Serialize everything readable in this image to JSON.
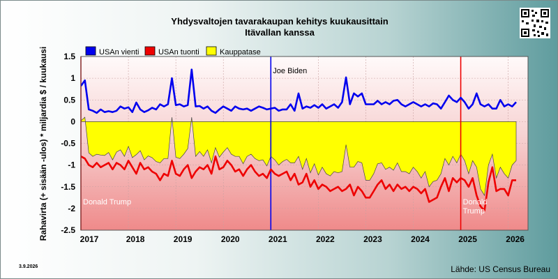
{
  "header": {
    "title_line1": "Yhdysvaltojen tavarakaupan kehitys kuukausittain",
    "title_line2": "Itävallan kanssa"
  },
  "footer": {
    "date": "3.9.2026",
    "source": "Lähde: US Census Bureau"
  },
  "chart_data": {
    "type": "line",
    "title": "Yhdysvaltojen tavarakaupan kehitys kuukausittain Itävallan kanssa",
    "ylabel": "Rahavirta (+ sisään -ulos)  * miljardia $ / kuukausi",
    "xlabel": "",
    "ylim": [
      -2.5,
      1.5
    ],
    "yticks": [
      1.5,
      1,
      0.5,
      0,
      -0.5,
      -1,
      -1.5,
      -2,
      -2.5
    ],
    "xlim": [
      "2017-01",
      "2026-06"
    ],
    "xtick_labels": [
      "2017",
      "2018",
      "2019",
      "2020",
      "2021",
      "2022",
      "2023",
      "2024",
      "2025",
      "2026"
    ],
    "grid": true,
    "legend_position": "top-left",
    "x_start": "2017-01",
    "series": [
      {
        "name": "USAn vienti",
        "color": "#0000ee",
        "values": [
          0.82,
          0.95,
          0.28,
          0.25,
          0.2,
          0.28,
          0.22,
          0.24,
          0.22,
          0.25,
          0.35,
          0.3,
          0.33,
          0.22,
          0.44,
          0.28,
          0.22,
          0.26,
          0.32,
          0.28,
          0.4,
          0.35,
          0.4,
          1.0,
          0.38,
          0.4,
          0.35,
          0.38,
          1.2,
          0.35,
          0.36,
          0.3,
          0.35,
          0.25,
          0.2,
          0.28,
          0.35,
          0.3,
          0.25,
          0.35,
          0.3,
          0.28,
          0.3,
          0.25,
          0.3,
          0.35,
          0.32,
          0.28,
          0.3,
          0.32,
          0.25,
          0.28,
          0.28,
          0.4,
          0.25,
          0.65,
          0.3,
          0.35,
          0.32,
          0.38,
          0.32,
          0.4,
          0.3,
          0.35,
          0.4,
          0.32,
          0.45,
          1.02,
          0.4,
          0.65,
          0.58,
          0.65,
          0.4,
          0.4,
          0.4,
          0.48,
          0.4,
          0.45,
          0.4,
          0.48,
          0.5,
          0.4,
          0.35,
          0.4,
          0.45,
          0.4,
          0.35,
          0.4,
          0.35,
          0.42,
          0.4,
          0.3,
          0.45,
          0.6,
          0.5,
          0.45,
          0.55,
          0.45,
          0.3,
          0.4,
          0.65,
          0.4,
          0.35,
          0.4,
          0.3,
          0.3,
          0.5,
          0.35,
          0.4,
          0.35,
          0.45
        ]
      },
      {
        "name": "USAn tuonti",
        "color": "#ee0000",
        "values": [
          -0.8,
          -0.85,
          -1.0,
          -1.05,
          -0.95,
          -1.05,
          -1.0,
          -0.95,
          -1.1,
          -0.95,
          -1.0,
          -1.1,
          -0.9,
          -1.05,
          -1.2,
          -0.95,
          -1.1,
          -1.05,
          -1.15,
          -1.2,
          -1.35,
          -1.2,
          -1.25,
          -0.9,
          -1.2,
          -1.25,
          -1.1,
          -1.0,
          -1.3,
          -1.15,
          -1.05,
          -1.1,
          -1.0,
          -1.2,
          -0.8,
          -1.1,
          -1.05,
          -0.9,
          -1.0,
          -1.15,
          -1.1,
          -1.25,
          -1.1,
          -1.0,
          -1.15,
          -1.25,
          -1.2,
          -1.3,
          -1.1,
          -1.2,
          -1.25,
          -1.2,
          -1.15,
          -1.35,
          -1.2,
          -1.45,
          -1.4,
          -1.2,
          -1.5,
          -1.35,
          -1.55,
          -1.45,
          -1.5,
          -1.6,
          -1.55,
          -1.5,
          -1.6,
          -1.55,
          -1.45,
          -1.7,
          -1.5,
          -1.6,
          -1.75,
          -1.75,
          -1.6,
          -1.45,
          -1.35,
          -1.55,
          -1.45,
          -1.6,
          -1.45,
          -1.55,
          -1.5,
          -1.6,
          -1.5,
          -1.55,
          -1.65,
          -1.55,
          -1.85,
          -1.8,
          -1.75,
          -1.5,
          -1.3,
          -1.6,
          -1.3,
          -1.4,
          -1.3,
          -1.35,
          -1.5,
          -1.3,
          -1.7,
          -1.95,
          -2.05,
          -1.4,
          -1.05,
          -1.6,
          -1.55,
          -1.55,
          -1.7,
          -1.35,
          -1.35
        ]
      },
      {
        "name": "Kauppatase",
        "color": "#ffff00",
        "values": [
          0.02,
          0.1,
          -0.72,
          -0.8,
          -0.75,
          -0.77,
          -0.78,
          -0.71,
          -0.88,
          -0.7,
          -0.65,
          -0.8,
          -0.57,
          -0.83,
          -0.76,
          -0.67,
          -0.88,
          -0.79,
          -0.83,
          -0.92,
          -0.95,
          -0.85,
          -0.85,
          0.1,
          -0.82,
          -0.85,
          -0.75,
          -0.62,
          0.1,
          -0.8,
          -0.69,
          -0.8,
          -0.65,
          -0.95,
          -0.6,
          -0.82,
          -0.7,
          -0.6,
          -0.75,
          -0.8,
          -0.8,
          -0.97,
          -0.8,
          -0.75,
          -0.85,
          -0.9,
          -0.88,
          -1.02,
          -0.8,
          -0.88,
          -1.0,
          -0.92,
          -0.87,
          -0.95,
          -0.95,
          -0.8,
          -1.1,
          -0.85,
          -1.18,
          -0.97,
          -1.23,
          -1.05,
          -1.2,
          -1.25,
          -1.15,
          -1.18,
          -1.15,
          -0.53,
          -1.05,
          -1.05,
          -0.92,
          -0.95,
          -1.35,
          -1.35,
          -1.2,
          -0.97,
          -0.95,
          -1.1,
          -1.05,
          -1.12,
          -0.95,
          -1.15,
          -1.15,
          -1.2,
          -1.05,
          -1.15,
          -1.3,
          -1.15,
          -1.5,
          -1.38,
          -1.35,
          -1.2,
          -0.85,
          -1.0,
          -0.8,
          -0.95,
          -0.75,
          -0.9,
          -1.2,
          -0.9,
          -1.05,
          -1.55,
          -1.7,
          -1.0,
          -0.75,
          -1.3,
          -1.05,
          -1.2,
          -1.3,
          -1.0,
          -0.9
        ]
      }
    ],
    "annotations": [
      {
        "label": "Donald Trump",
        "x": "2017-01",
        "color": "#ee0000"
      },
      {
        "label": "Joe Biden",
        "x": "2021-01",
        "color": "#0000ee"
      },
      {
        "label": "Donald Trump",
        "x": "2025-01",
        "color": "#ee0000"
      }
    ]
  }
}
